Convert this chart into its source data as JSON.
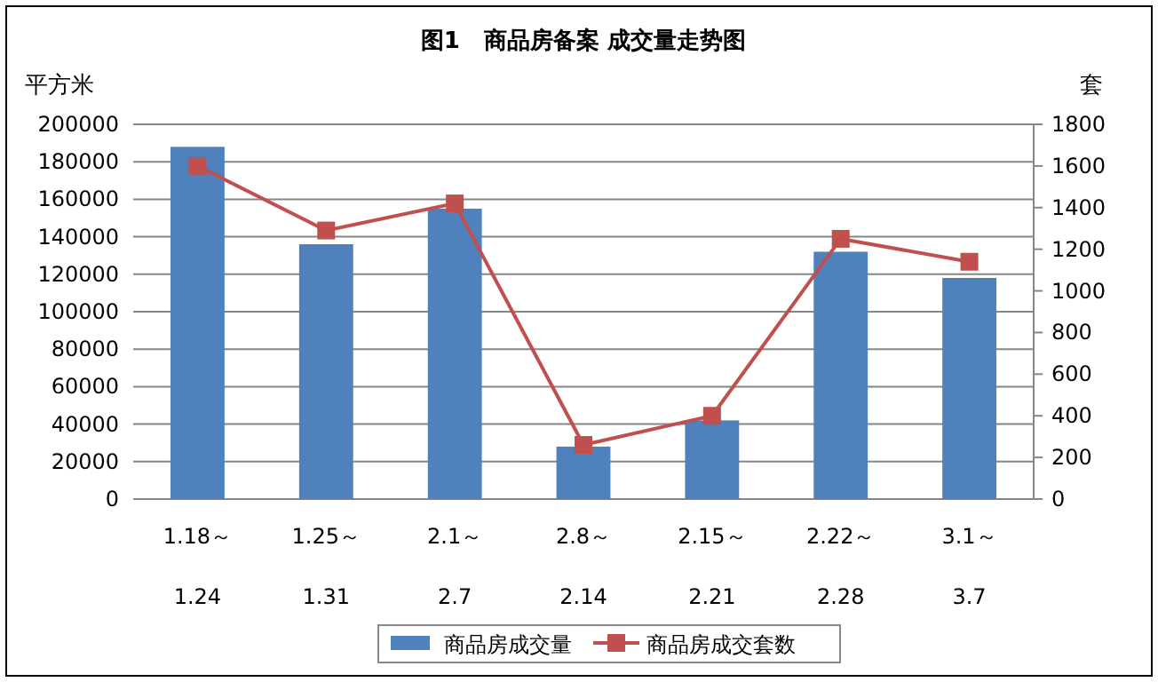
{
  "chart_data": {
    "type": "bar",
    "title": "图1   商品房备案 成交量走势图",
    "ylabel": "平方米",
    "y2label": "套",
    "categories": [
      "1.18～\n1.24",
      "1.25～\n1.31",
      "2.1～\n2.7",
      "2.8～\n2.14",
      "2.15～\n2.21",
      "2.22～\n2.28",
      "3.1～\n3.7"
    ],
    "series": [
      {
        "name": "商品房成交量",
        "color": "#4f81bd",
        "values": [
          188000,
          136000,
          155000,
          28000,
          42000,
          132000,
          118000
        ]
      },
      {
        "name": "商品房成交套数",
        "type": "line",
        "axis": "y2",
        "color": "#c0504d",
        "marker": "square",
        "values": [
          1600,
          1290,
          1420,
          260,
          400,
          1250,
          1140
        ]
      }
    ],
    "ylim": [
      0,
      200000
    ],
    "yticks": [
      0,
      20000,
      40000,
      60000,
      80000,
      100000,
      120000,
      140000,
      160000,
      180000,
      200000
    ],
    "y2lim": [
      0,
      1800
    ],
    "y2ticks": [
      0,
      200,
      400,
      600,
      800,
      1000,
      1200,
      1400,
      1600,
      1800
    ],
    "grid": "y",
    "legend": "bottom"
  }
}
